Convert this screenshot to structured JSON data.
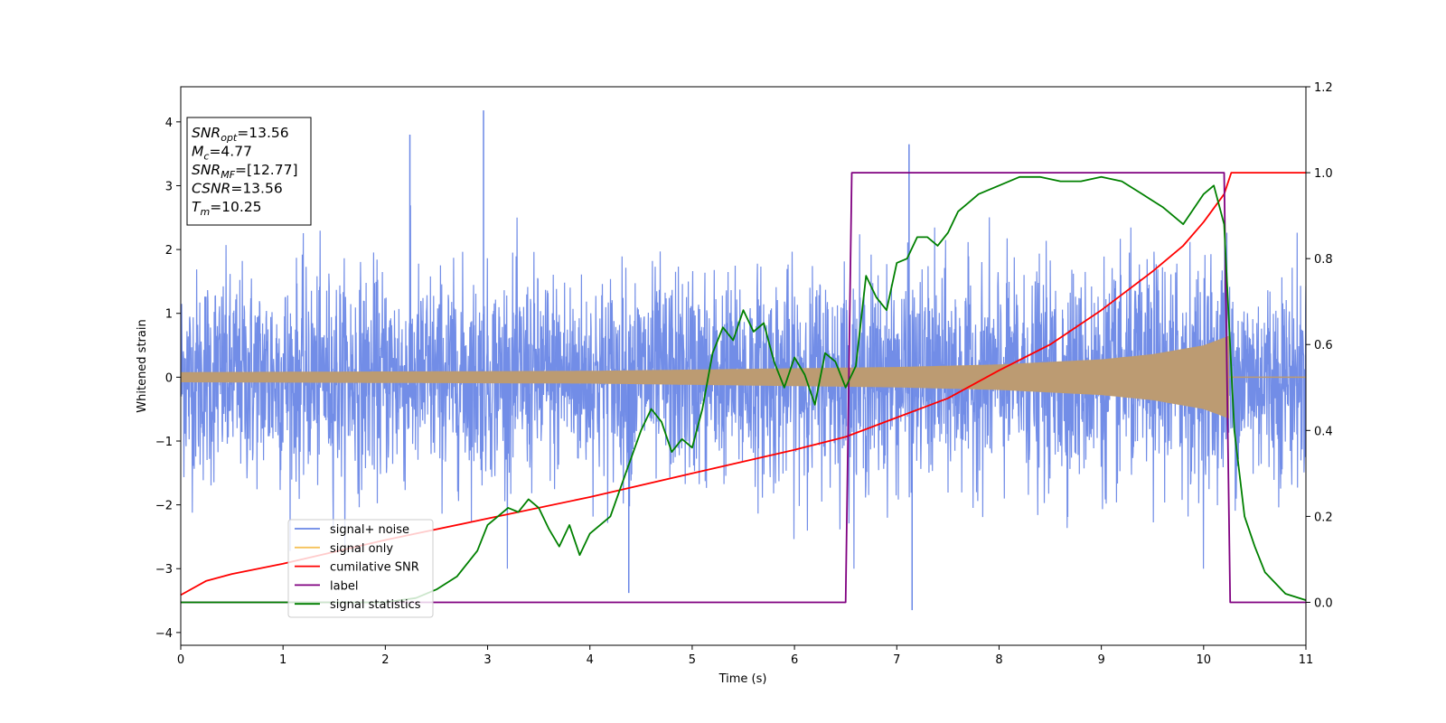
{
  "chart_data": {
    "type": "line",
    "xlabel": "Time (s)",
    "ylabel": "Whitened strain",
    "xlim": [
      0,
      11
    ],
    "ylim": [
      -4.2,
      4.55
    ],
    "ylim_right": [
      -0.1,
      1.2
    ],
    "x_ticks": [
      0,
      1,
      2,
      3,
      4,
      5,
      6,
      7,
      8,
      9,
      10,
      11
    ],
    "y_ticks": [
      -4,
      -3,
      -2,
      -1,
      0,
      1,
      2,
      3,
      4
    ],
    "y_tick_labels": [
      "−4",
      "−3",
      "−2",
      "−1",
      "0",
      "1",
      "2",
      "3",
      "4"
    ],
    "y2_ticks": [
      0.0,
      0.2,
      0.4,
      0.6,
      0.8,
      1.0,
      1.2
    ],
    "y2_tick_labels": [
      "0.0",
      "0.2",
      "0.4",
      "0.6",
      "0.8",
      "1.0",
      "1.2"
    ],
    "legend_position": "lower-left",
    "grid": false,
    "info_box": {
      "lines": [
        {
          "main": "SNR",
          "sub": "opt",
          "rest": "=13.56"
        },
        {
          "main": "M",
          "sub": "c",
          "rest": "=4.77"
        },
        {
          "main": "SNR",
          "sub": "MF",
          "rest": "=[12.77]"
        },
        {
          "main": "CSNR",
          "sub": "",
          "rest": "=13.56"
        },
        {
          "main": "T",
          "sub": "m",
          "rest": "=10.25"
        }
      ]
    },
    "series": [
      {
        "name": "signal+ noise",
        "axis": "left",
        "color": "#6a87e6",
        "kind": "noise",
        "noise_std": 0.8,
        "notable_peaks": [
          {
            "x": 2.24,
            "y": 3.8
          },
          {
            "x": 2.96,
            "y": 4.18
          },
          {
            "x": 4.38,
            "y": -3.38
          },
          {
            "x": 7.12,
            "y": 3.65
          },
          {
            "x": 7.15,
            "y": -3.65
          }
        ]
      },
      {
        "name": "signal only",
        "axis": "left",
        "color": "#f5c25a",
        "kind": "chirp_envelope",
        "end_x": 10.25,
        "envelope": [
          [
            0,
            0.08
          ],
          [
            2,
            0.09
          ],
          [
            4,
            0.1
          ],
          [
            6,
            0.14
          ],
          [
            7,
            0.16
          ],
          [
            8,
            0.2
          ],
          [
            9,
            0.28
          ],
          [
            9.5,
            0.36
          ],
          [
            10,
            0.5
          ],
          [
            10.25,
            0.65
          ]
        ]
      },
      {
        "name": "cumilative SNR",
        "axis": "right",
        "color": "#ff0000",
        "x": [
          0,
          0.25,
          0.5,
          1,
          2,
          3,
          4,
          5,
          6,
          6.5,
          7,
          7.5,
          8,
          8.5,
          9,
          9.5,
          9.8,
          10,
          10.2,
          10.27,
          10.5,
          11
        ],
        "values": [
          0.017,
          0.05,
          0.066,
          0.09,
          0.145,
          0.195,
          0.245,
          0.3,
          0.355,
          0.385,
          0.43,
          0.475,
          0.54,
          0.6,
          0.68,
          0.77,
          0.83,
          0.885,
          0.95,
          1.0,
          1.0,
          1.0
        ]
      },
      {
        "name": "label",
        "axis": "right",
        "color": "#800080",
        "x": [
          0,
          6.5,
          6.56,
          10.2,
          10.26,
          11
        ],
        "values": [
          0,
          0,
          1,
          1,
          0,
          0
        ]
      },
      {
        "name": "signal statistics",
        "axis": "right",
        "color": "#008000",
        "x": [
          0,
          1,
          2,
          2.3,
          2.5,
          2.7,
          2.9,
          3.0,
          3.1,
          3.2,
          3.3,
          3.4,
          3.5,
          3.6,
          3.7,
          3.8,
          3.9,
          4.0,
          4.2,
          4.35,
          4.5,
          4.6,
          4.7,
          4.8,
          4.9,
          5.0,
          5.1,
          5.2,
          5.3,
          5.4,
          5.5,
          5.6,
          5.7,
          5.8,
          5.9,
          6.0,
          6.1,
          6.2,
          6.3,
          6.4,
          6.5,
          6.6,
          6.7,
          6.8,
          6.9,
          7.0,
          7.1,
          7.2,
          7.3,
          7.4,
          7.5,
          7.6,
          7.7,
          7.8,
          7.9,
          8.0,
          8.2,
          8.4,
          8.6,
          8.8,
          9.0,
          9.2,
          9.4,
          9.6,
          9.8,
          10.0,
          10.1,
          10.2,
          10.3,
          10.4,
          10.5,
          10.6,
          10.8,
          11.0
        ],
        "values": [
          0,
          0,
          0,
          0.01,
          0.03,
          0.06,
          0.12,
          0.18,
          0.2,
          0.22,
          0.21,
          0.24,
          0.22,
          0.17,
          0.13,
          0.18,
          0.11,
          0.16,
          0.2,
          0.3,
          0.4,
          0.45,
          0.42,
          0.35,
          0.38,
          0.36,
          0.45,
          0.58,
          0.64,
          0.61,
          0.68,
          0.63,
          0.65,
          0.56,
          0.5,
          0.57,
          0.53,
          0.46,
          0.58,
          0.56,
          0.5,
          0.55,
          0.76,
          0.71,
          0.68,
          0.79,
          0.8,
          0.85,
          0.85,
          0.83,
          0.86,
          0.91,
          0.93,
          0.95,
          0.96,
          0.97,
          0.99,
          0.99,
          0.98,
          0.98,
          0.99,
          0.98,
          0.95,
          0.92,
          0.88,
          0.95,
          0.97,
          0.88,
          0.4,
          0.2,
          0.13,
          0.07,
          0.02,
          0.005
        ]
      }
    ]
  }
}
